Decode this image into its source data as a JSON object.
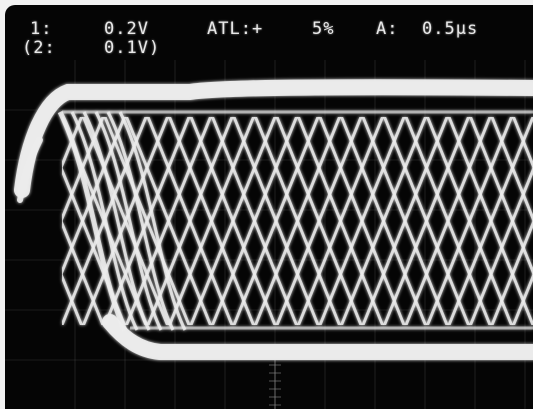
{
  "readouts": {
    "ch1_label": "1:",
    "ch1_value": "0.2V",
    "ch2_label": "(2:",
    "ch2_value": "0.1V)",
    "trigger_label": "ATL:+",
    "trigger_value": "5%",
    "timebase_label": "A:",
    "timebase_value": "0.5µs"
  },
  "colors": {
    "screen_background": "#050505",
    "trace_color": "#ececec",
    "graticule_color": "#8a8a8a",
    "text_color": "#e9e9e9",
    "bezel_color": "#f2f2f2"
  }
}
